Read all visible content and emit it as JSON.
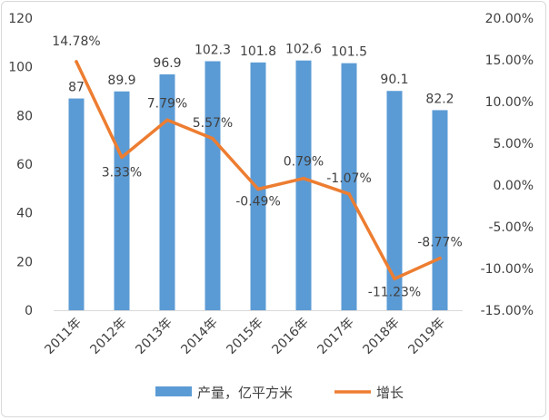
{
  "chart_data": {
    "type": "bar",
    "title": "",
    "categories": [
      "2011年",
      "2012年",
      "2013年",
      "2014年",
      "2015年",
      "2016年",
      "2017年",
      "2018年",
      "2019年"
    ],
    "series": [
      {
        "name": "产量，亿平方米",
        "type": "bar",
        "axis": "left",
        "values": [
          87,
          89.9,
          96.9,
          102.3,
          101.8,
          102.6,
          101.5,
          90.1,
          82.2
        ],
        "labels": [
          "87",
          "89.9",
          "96.9",
          "102.3",
          "101.8",
          "102.6",
          "101.5",
          "90.1",
          "82.2"
        ],
        "color": "#5b9bd5"
      },
      {
        "name": "增长",
        "type": "line",
        "axis": "right",
        "values": [
          14.78,
          3.33,
          7.79,
          5.57,
          -0.49,
          0.79,
          -1.07,
          -11.23,
          -8.77
        ],
        "labels": [
          "14.78%",
          "3.33%",
          "7.79%",
          "5.57%",
          "-0.49%",
          "0.79%",
          "-1.07%",
          "-11.23%",
          "-8.77%"
        ],
        "color": "#ed7d31"
      }
    ],
    "left_axis": {
      "min": 0,
      "max": 120,
      "ticks": [
        "0",
        "20",
        "40",
        "60",
        "80",
        "100",
        "120"
      ]
    },
    "right_axis": {
      "min": -15,
      "max": 20,
      "ticks": [
        "-15.00%",
        "-10.00%",
        "-5.00%",
        "0.00%",
        "5.00%",
        "10.00%",
        "15.00%",
        "20.00%"
      ]
    },
    "legend": {
      "position": "bottom",
      "items": [
        "产量，亿平方米",
        "增长"
      ]
    },
    "grid": false
  }
}
